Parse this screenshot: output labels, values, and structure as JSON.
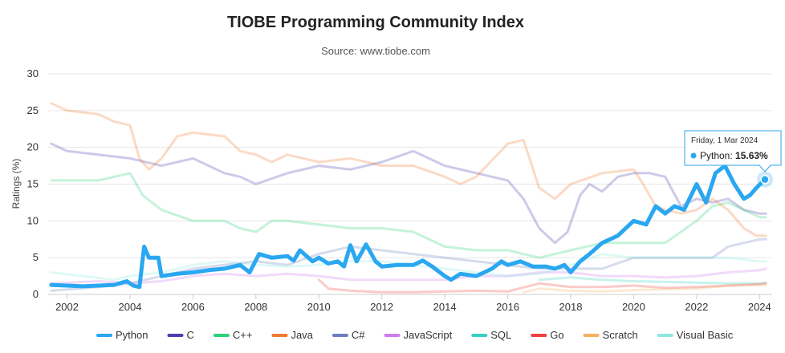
{
  "colors": {
    "python": "#2aa7f0",
    "c": "#4a3fb0",
    "cpp": "#2fd07a",
    "java": "#f07a30",
    "csharp": "#6a80c0",
    "javascript": "#d07af0",
    "sql": "#36d0c0",
    "go": "#f04040",
    "scratch": "#f4b060",
    "visualbasic": "#8ae8e0"
  },
  "chart_data": {
    "type": "line",
    "title": "TIOBE Programming Community Index",
    "subtitle": "Source: www.tiobe.com",
    "ylabel": "Ratings (%)",
    "xlabel": "",
    "xlim": [
      2001.4,
      2024.4
    ],
    "ylim": [
      0,
      30
    ],
    "x_ticks": [
      "2002",
      "2004",
      "2006",
      "2008",
      "2010",
      "2012",
      "2014",
      "2016",
      "2018",
      "2020",
      "2022",
      "2024"
    ],
    "y_ticks": [
      "0",
      "5",
      "10",
      "15",
      "20",
      "25",
      "30"
    ],
    "grid": "horizontal",
    "legend_position": "bottom",
    "series": [
      {
        "name": "Python",
        "key": "python",
        "highlight": true,
        "points": [
          [
            2001.5,
            1.3
          ],
          [
            2002.5,
            1.1
          ],
          [
            2003.5,
            1.3
          ],
          [
            2003.9,
            1.8
          ],
          [
            2004.1,
            1.2
          ],
          [
            2004.3,
            1.0
          ],
          [
            2004.45,
            6.5
          ],
          [
            2004.6,
            5.0
          ],
          [
            2004.9,
            5.0
          ],
          [
            2005.0,
            2.5
          ],
          [
            2005.5,
            2.8
          ],
          [
            2006.0,
            3.0
          ],
          [
            2006.5,
            3.3
          ],
          [
            2007.0,
            3.5
          ],
          [
            2007.5,
            4.0
          ],
          [
            2007.8,
            3.0
          ],
          [
            2008.1,
            5.5
          ],
          [
            2008.5,
            5.0
          ],
          [
            2009.0,
            5.2
          ],
          [
            2009.2,
            4.6
          ],
          [
            2009.4,
            6.0
          ],
          [
            2009.8,
            4.5
          ],
          [
            2010.0,
            5.0
          ],
          [
            2010.3,
            4.2
          ],
          [
            2010.6,
            4.5
          ],
          [
            2010.8,
            3.8
          ],
          [
            2011.0,
            6.7
          ],
          [
            2011.2,
            4.5
          ],
          [
            2011.5,
            6.8
          ],
          [
            2011.8,
            4.5
          ],
          [
            2012.0,
            3.8
          ],
          [
            2012.5,
            4.0
          ],
          [
            2013.0,
            4.0
          ],
          [
            2013.3,
            4.6
          ],
          [
            2013.6,
            3.8
          ],
          [
            2014.0,
            2.5
          ],
          [
            2014.2,
            2.0
          ],
          [
            2014.5,
            2.8
          ],
          [
            2015.0,
            2.5
          ],
          [
            2015.5,
            3.5
          ],
          [
            2015.8,
            4.5
          ],
          [
            2016.0,
            4.0
          ],
          [
            2016.4,
            4.5
          ],
          [
            2016.8,
            3.8
          ],
          [
            2017.2,
            3.8
          ],
          [
            2017.5,
            3.5
          ],
          [
            2017.8,
            4.0
          ],
          [
            2018.0,
            3.0
          ],
          [
            2018.3,
            4.5
          ],
          [
            2018.6,
            5.5
          ],
          [
            2019.0,
            7.0
          ],
          [
            2019.5,
            8.0
          ],
          [
            2020.0,
            10.0
          ],
          [
            2020.4,
            9.5
          ],
          [
            2020.7,
            12.0
          ],
          [
            2021.0,
            11.0
          ],
          [
            2021.3,
            12.0
          ],
          [
            2021.6,
            11.5
          ],
          [
            2022.0,
            15.0
          ],
          [
            2022.3,
            12.5
          ],
          [
            2022.6,
            16.5
          ],
          [
            2022.9,
            17.5
          ],
          [
            2023.2,
            15.0
          ],
          [
            2023.5,
            13.0
          ],
          [
            2023.7,
            13.5
          ],
          [
            2023.9,
            14.5
          ],
          [
            2024.17,
            15.63
          ]
        ]
      },
      {
        "name": "C",
        "key": "c",
        "points": [
          [
            2001.5,
            20.5
          ],
          [
            2002.0,
            19.5
          ],
          [
            2003.0,
            19.0
          ],
          [
            2004.0,
            18.5
          ],
          [
            2005.0,
            17.5
          ],
          [
            2006.0,
            18.5
          ],
          [
            2007.0,
            16.5
          ],
          [
            2007.5,
            16.0
          ],
          [
            2008.0,
            15.0
          ],
          [
            2009.0,
            16.5
          ],
          [
            2010.0,
            17.5
          ],
          [
            2011.0,
            17.0
          ],
          [
            2012.0,
            18.0
          ],
          [
            2013.0,
            19.5
          ],
          [
            2014.0,
            17.5
          ],
          [
            2015.0,
            16.5
          ],
          [
            2016.0,
            15.5
          ],
          [
            2016.5,
            13.0
          ],
          [
            2017.0,
            9.0
          ],
          [
            2017.5,
            7.0
          ],
          [
            2017.9,
            8.5
          ],
          [
            2018.3,
            13.5
          ],
          [
            2018.6,
            15.0
          ],
          [
            2019.0,
            14.0
          ],
          [
            2019.5,
            16.0
          ],
          [
            2020.0,
            16.5
          ],
          [
            2020.5,
            16.5
          ],
          [
            2021.0,
            16.0
          ],
          [
            2021.5,
            12.0
          ],
          [
            2022.0,
            13.0
          ],
          [
            2022.5,
            12.5
          ],
          [
            2023.0,
            13.0
          ],
          [
            2023.5,
            11.5
          ],
          [
            2024.0,
            11.0
          ],
          [
            2024.2,
            11.0
          ]
        ]
      },
      {
        "name": "C++",
        "key": "cpp",
        "points": [
          [
            2001.5,
            15.5
          ],
          [
            2002.0,
            15.5
          ],
          [
            2003.0,
            15.5
          ],
          [
            2004.0,
            16.5
          ],
          [
            2004.4,
            13.5
          ],
          [
            2005.0,
            11.5
          ],
          [
            2006.0,
            10.0
          ],
          [
            2007.0,
            10.0
          ],
          [
            2007.5,
            9.0
          ],
          [
            2008.0,
            8.5
          ],
          [
            2008.5,
            10.0
          ],
          [
            2009.0,
            10.0
          ],
          [
            2010.0,
            9.5
          ],
          [
            2011.0,
            9.0
          ],
          [
            2012.0,
            9.0
          ],
          [
            2013.0,
            8.5
          ],
          [
            2014.0,
            6.5
          ],
          [
            2015.0,
            6.0
          ],
          [
            2016.0,
            6.0
          ],
          [
            2017.0,
            5.0
          ],
          [
            2018.0,
            6.0
          ],
          [
            2019.0,
            7.0
          ],
          [
            2020.0,
            7.0
          ],
          [
            2021.0,
            7.0
          ],
          [
            2022.0,
            10.0
          ],
          [
            2022.5,
            12.0
          ],
          [
            2023.0,
            12.5
          ],
          [
            2023.5,
            11.5
          ],
          [
            2024.0,
            10.5
          ],
          [
            2024.2,
            10.5
          ]
        ]
      },
      {
        "name": "Java",
        "key": "java",
        "points": [
          [
            2001.5,
            26.0
          ],
          [
            2002.0,
            25.0
          ],
          [
            2003.0,
            24.5
          ],
          [
            2003.5,
            23.5
          ],
          [
            2004.0,
            23.0
          ],
          [
            2004.3,
            18.5
          ],
          [
            2004.6,
            17.0
          ],
          [
            2005.0,
            18.5
          ],
          [
            2005.5,
            21.5
          ],
          [
            2006.0,
            22.0
          ],
          [
            2007.0,
            21.5
          ],
          [
            2007.5,
            19.5
          ],
          [
            2008.0,
            19.0
          ],
          [
            2008.5,
            18.0
          ],
          [
            2009.0,
            19.0
          ],
          [
            2010.0,
            18.0
          ],
          [
            2011.0,
            18.5
          ],
          [
            2012.0,
            17.5
          ],
          [
            2013.0,
            17.5
          ],
          [
            2014.0,
            16.0
          ],
          [
            2014.5,
            15.0
          ],
          [
            2015.0,
            16.0
          ],
          [
            2016.0,
            20.5
          ],
          [
            2016.5,
            21.0
          ],
          [
            2017.0,
            14.5
          ],
          [
            2017.5,
            13.0
          ],
          [
            2018.0,
            15.0
          ],
          [
            2019.0,
            16.5
          ],
          [
            2020.0,
            17.0
          ],
          [
            2020.3,
            15.0
          ],
          [
            2020.7,
            12.0
          ],
          [
            2021.0,
            11.5
          ],
          [
            2021.5,
            11.0
          ],
          [
            2022.0,
            11.5
          ],
          [
            2022.5,
            13.0
          ],
          [
            2023.0,
            11.5
          ],
          [
            2023.5,
            9.0
          ],
          [
            2023.9,
            8.0
          ],
          [
            2024.2,
            8.0
          ]
        ]
      },
      {
        "name": "C#",
        "key": "csharp",
        "points": [
          [
            2001.5,
            0.5
          ],
          [
            2003.0,
            1.0
          ],
          [
            2004.0,
            1.5
          ],
          [
            2005.0,
            2.5
          ],
          [
            2006.0,
            3.5
          ],
          [
            2007.0,
            4.0
          ],
          [
            2008.0,
            4.5
          ],
          [
            2009.0,
            4.0
          ],
          [
            2010.0,
            5.5
          ],
          [
            2011.0,
            6.5
          ],
          [
            2012.0,
            6.0
          ],
          [
            2013.0,
            5.5
          ],
          [
            2014.0,
            5.0
          ],
          [
            2015.0,
            4.5
          ],
          [
            2016.0,
            4.0
          ],
          [
            2017.0,
            3.5
          ],
          [
            2018.0,
            3.5
          ],
          [
            2019.0,
            3.5
          ],
          [
            2020.0,
            5.0
          ],
          [
            2021.0,
            5.0
          ],
          [
            2022.0,
            5.0
          ],
          [
            2022.5,
            5.0
          ],
          [
            2023.0,
            6.5
          ],
          [
            2023.5,
            7.0
          ],
          [
            2024.0,
            7.5
          ],
          [
            2024.2,
            7.5
          ]
        ]
      },
      {
        "name": "JavaScript",
        "key": "javascript",
        "points": [
          [
            2001.5,
            1.5
          ],
          [
            2003.0,
            1.8
          ],
          [
            2004.0,
            1.5
          ],
          [
            2005.0,
            1.8
          ],
          [
            2006.0,
            2.5
          ],
          [
            2007.0,
            2.8
          ],
          [
            2008.0,
            2.5
          ],
          [
            2009.0,
            2.8
          ],
          [
            2010.0,
            2.5
          ],
          [
            2011.0,
            2.0
          ],
          [
            2012.0,
            2.0
          ],
          [
            2013.0,
            2.0
          ],
          [
            2014.0,
            2.0
          ],
          [
            2015.0,
            2.5
          ],
          [
            2016.0,
            2.5
          ],
          [
            2017.0,
            3.0
          ],
          [
            2018.0,
            3.0
          ],
          [
            2019.0,
            2.5
          ],
          [
            2020.0,
            2.5
          ],
          [
            2021.0,
            2.3
          ],
          [
            2022.0,
            2.5
          ],
          [
            2023.0,
            3.0
          ],
          [
            2024.0,
            3.3
          ],
          [
            2024.2,
            3.5
          ]
        ]
      },
      {
        "name": "SQL",
        "key": "sql",
        "points": [
          [
            2017.0,
            2.0
          ],
          [
            2018.0,
            2.3
          ],
          [
            2019.0,
            2.0
          ],
          [
            2020.0,
            1.8
          ],
          [
            2021.0,
            1.7
          ],
          [
            2022.0,
            1.6
          ],
          [
            2023.0,
            1.5
          ],
          [
            2024.0,
            1.5
          ],
          [
            2024.2,
            1.6
          ]
        ]
      },
      {
        "name": "Go",
        "key": "go",
        "points": [
          [
            2010.0,
            2.0
          ],
          [
            2010.3,
            0.8
          ],
          [
            2011.0,
            0.5
          ],
          [
            2012.0,
            0.3
          ],
          [
            2013.0,
            0.3
          ],
          [
            2014.0,
            0.4
          ],
          [
            2015.0,
            0.5
          ],
          [
            2016.0,
            0.4
          ],
          [
            2017.0,
            1.5
          ],
          [
            2018.0,
            1.0
          ],
          [
            2019.0,
            1.0
          ],
          [
            2020.0,
            1.2
          ],
          [
            2021.0,
            0.9
          ],
          [
            2022.0,
            1.0
          ],
          [
            2023.0,
            1.2
          ],
          [
            2024.0,
            1.4
          ],
          [
            2024.2,
            1.5
          ]
        ]
      },
      {
        "name": "Scratch",
        "key": "scratch",
        "points": [
          [
            2016.5,
            0.3
          ],
          [
            2017.0,
            0.8
          ],
          [
            2018.0,
            0.5
          ],
          [
            2019.0,
            0.4
          ],
          [
            2020.0,
            0.6
          ],
          [
            2021.0,
            0.7
          ],
          [
            2022.0,
            0.8
          ],
          [
            2023.0,
            1.2
          ],
          [
            2024.0,
            1.3
          ],
          [
            2024.2,
            1.3
          ]
        ]
      },
      {
        "name": "Visual Basic",
        "key": "visualbasic",
        "points": [
          [
            2001.5,
            3.0
          ],
          [
            2002.5,
            2.5
          ],
          [
            2003.5,
            2.0
          ],
          [
            2004.0,
            2.5
          ],
          [
            2005.0,
            3.0
          ],
          [
            2006.0,
            4.0
          ],
          [
            2007.0,
            4.5
          ],
          [
            2008.0,
            4.0
          ],
          [
            2009.0,
            3.8
          ],
          [
            2010.0,
            4.0
          ],
          [
            2011.0,
            4.5
          ],
          [
            2012.0,
            4.5
          ],
          [
            2013.0,
            4.0
          ],
          [
            2014.0,
            3.5
          ],
          [
            2015.0,
            3.0
          ],
          [
            2016.0,
            2.5
          ],
          [
            2017.0,
            2.8
          ],
          [
            2018.0,
            4.0
          ],
          [
            2019.0,
            5.5
          ],
          [
            2020.0,
            5.0
          ],
          [
            2021.0,
            5.0
          ],
          [
            2022.0,
            5.0
          ],
          [
            2023.0,
            5.0
          ],
          [
            2024.0,
            4.5
          ],
          [
            2024.2,
            4.5
          ]
        ]
      }
    ],
    "tooltip": {
      "date": "Friday, 1 Mar 2024",
      "series": "Python",
      "value": "15.63%",
      "x": 2024.17,
      "y": 15.63
    }
  }
}
